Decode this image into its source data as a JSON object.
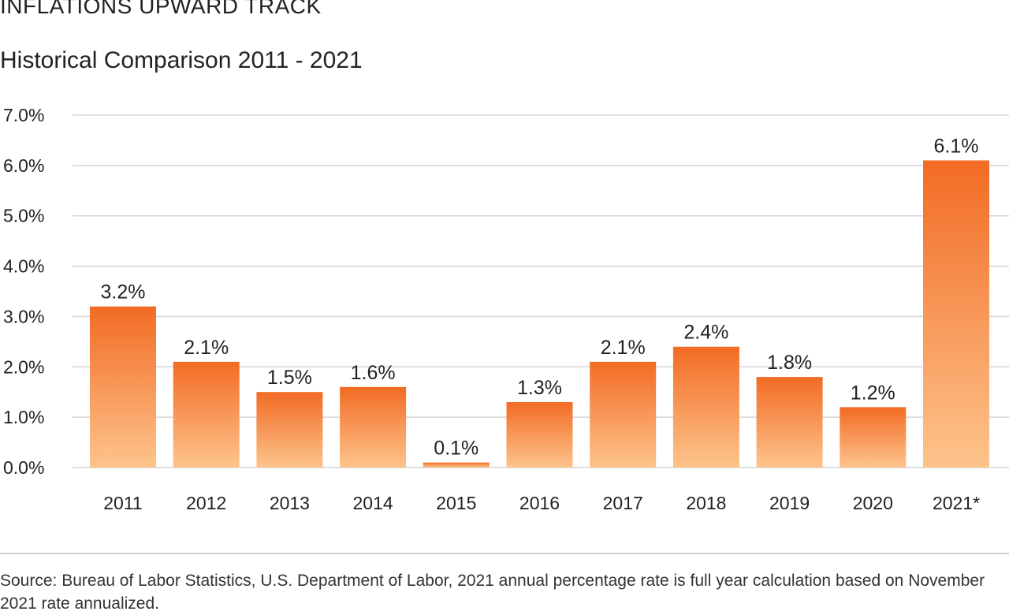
{
  "chart_data": {
    "type": "bar",
    "title": "INFLATIONS UPWARD TRACK",
    "subtitle": "Historical Comparison 2011 - 2021",
    "categories": [
      "2011",
      "2012",
      "2013",
      "2014",
      "2015",
      "2016",
      "2017",
      "2018",
      "2019",
      "2020",
      "2021*"
    ],
    "values": [
      3.2,
      2.1,
      1.5,
      1.6,
      0.1,
      1.3,
      2.1,
      2.4,
      1.8,
      1.2,
      6.1
    ],
    "data_labels": [
      "3.2%",
      "2.1%",
      "1.5%",
      "1.6%",
      "0.1%",
      "1.3%",
      "2.1%",
      "2.4%",
      "1.8%",
      "1.2%",
      "6.1%"
    ],
    "xlabel": "",
    "ylabel": "",
    "ylim": [
      0,
      7
    ],
    "yticks": [
      0,
      1,
      2,
      3,
      4,
      5,
      6,
      7
    ],
    "ytick_labels": [
      "0.0%",
      "1.0%",
      "2.0%",
      "3.0%",
      "4.0%",
      "5.0%",
      "6.0%",
      "7.0%"
    ],
    "grid": true,
    "legend": "none",
    "colors": {
      "bar_top": "#f26b24",
      "bar_bottom": "#fdc48c",
      "grid": "#d6d6d6",
      "text": "#222222"
    }
  },
  "footer": {
    "source": "Source: Bureau of Labor Statistics, U.S. Department of Labor, 2021 annual percentage rate is full year calculation based on November 2021 rate annualized."
  }
}
